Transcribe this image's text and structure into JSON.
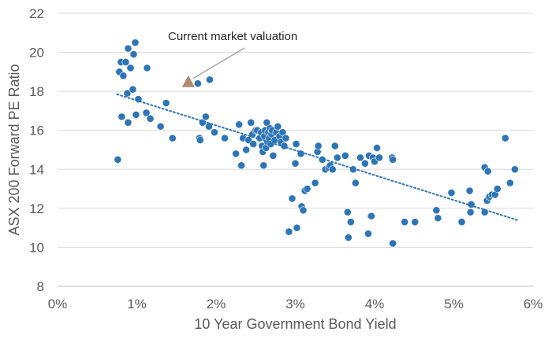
{
  "chart_data": {
    "type": "scatter",
    "title": "",
    "xlabel": "10 Year Government Bond Yield",
    "ylabel": "ASX 200 Forward PE Ratio",
    "xlim": [
      0,
      6
    ],
    "ylim": [
      8,
      22
    ],
    "x_ticks": [
      0,
      1,
      2,
      3,
      4,
      5,
      6
    ],
    "x_tick_labels": [
      "0%",
      "1%",
      "2%",
      "3%",
      "4%",
      "5%",
      "6%"
    ],
    "y_ticks": [
      8,
      10,
      12,
      14,
      16,
      18,
      20,
      22
    ],
    "y_tick_labels": [
      "8",
      "10",
      "12",
      "14",
      "16",
      "18",
      "20",
      "22"
    ],
    "grid": "horizontal",
    "legend": "none",
    "point_color": "#2E75B6",
    "trend_color": "#2E75B6",
    "marker_color": "#B08B6E",
    "points": [
      [
        0.76,
        14.5
      ],
      [
        0.78,
        19.0
      ],
      [
        0.8,
        19.5
      ],
      [
        0.81,
        16.7
      ],
      [
        0.83,
        18.8
      ],
      [
        0.86,
        19.5
      ],
      [
        0.88,
        17.9
      ],
      [
        0.89,
        16.4
      ],
      [
        0.89,
        20.2
      ],
      [
        0.92,
        19.2
      ],
      [
        0.95,
        18.1
      ],
      [
        0.96,
        19.9
      ],
      [
        0.98,
        20.5
      ],
      [
        0.99,
        16.8
      ],
      [
        1.02,
        17.6
      ],
      [
        1.12,
        16.9
      ],
      [
        1.13,
        19.2
      ],
      [
        1.17,
        16.6
      ],
      [
        1.3,
        16.2
      ],
      [
        1.37,
        17.4
      ],
      [
        1.45,
        15.6
      ],
      [
        1.77,
        18.4
      ],
      [
        1.79,
        15.6
      ],
      [
        1.8,
        15.5
      ],
      [
        1.83,
        16.4
      ],
      [
        1.87,
        16.7
      ],
      [
        1.91,
        16.2
      ],
      [
        1.92,
        18.6
      ],
      [
        1.98,
        15.9
      ],
      [
        2.11,
        15.6
      ],
      [
        2.25,
        14.8
      ],
      [
        2.29,
        16.3
      ],
      [
        2.32,
        14.2
      ],
      [
        2.34,
        15.6
      ],
      [
        2.38,
        15.0
      ],
      [
        2.41,
        15.5
      ],
      [
        2.44,
        16.4
      ],
      [
        2.46,
        15.8
      ],
      [
        2.47,
        15.3
      ],
      [
        2.5,
        16.0
      ],
      [
        2.52,
        16.0
      ],
      [
        2.55,
        15.6
      ],
      [
        2.57,
        15.9
      ],
      [
        2.58,
        15.2
      ],
      [
        2.59,
        14.9
      ],
      [
        2.6,
        14.2
      ],
      [
        2.61,
        15.7
      ],
      [
        2.62,
        16.0
      ],
      [
        2.63,
        15.1
      ],
      [
        2.64,
        16.4
      ],
      [
        2.65,
        15.4
      ],
      [
        2.66,
        15.9
      ],
      [
        2.67,
        15.6
      ],
      [
        2.68,
        16.1
      ],
      [
        2.69,
        15.3
      ],
      [
        2.7,
        15.8
      ],
      [
        2.71,
        16.0
      ],
      [
        2.72,
        14.7
      ],
      [
        2.74,
        15.5
      ],
      [
        2.76,
        15.9
      ],
      [
        2.78,
        16.2
      ],
      [
        2.8,
        15.7
      ],
      [
        2.82,
        15.4
      ],
      [
        2.84,
        15.9
      ],
      [
        2.86,
        15.2
      ],
      [
        2.88,
        15.6
      ],
      [
        2.92,
        10.8
      ],
      [
        2.96,
        12.5
      ],
      [
        3.0,
        14.3
      ],
      [
        3.01,
        15.3
      ],
      [
        3.02,
        11.0
      ],
      [
        3.07,
        14.8
      ],
      [
        3.08,
        12.1
      ],
      [
        3.1,
        11.9
      ],
      [
        3.12,
        12.9
      ],
      [
        3.15,
        13.0
      ],
      [
        3.25,
        13.3
      ],
      [
        3.28,
        14.9
      ],
      [
        3.29,
        15.2
      ],
      [
        3.34,
        14.5
      ],
      [
        3.38,
        14.0
      ],
      [
        3.42,
        14.1
      ],
      [
        3.44,
        14.2
      ],
      [
        3.47,
        14.0
      ],
      [
        3.5,
        15.2
      ],
      [
        3.53,
        14.6
      ],
      [
        3.63,
        14.7
      ],
      [
        3.66,
        11.8
      ],
      [
        3.67,
        10.5
      ],
      [
        3.7,
        11.3
      ],
      [
        3.73,
        14.0
      ],
      [
        3.76,
        13.3
      ],
      [
        3.82,
        14.6
      ],
      [
        3.88,
        14.3
      ],
      [
        3.92,
        10.7
      ],
      [
        3.93,
        14.7
      ],
      [
        3.95,
        11.6
      ],
      [
        3.96,
        11.6
      ],
      [
        3.98,
        14.6
      ],
      [
        4.0,
        14.4
      ],
      [
        4.03,
        15.1
      ],
      [
        4.06,
        14.6
      ],
      [
        4.22,
        14.6
      ],
      [
        4.23,
        10.2
      ],
      [
        4.23,
        14.5
      ],
      [
        4.38,
        11.3
      ],
      [
        4.51,
        11.3
      ],
      [
        4.78,
        11.9
      ],
      [
        4.8,
        11.5
      ],
      [
        4.97,
        12.8
      ],
      [
        5.1,
        11.3
      ],
      [
        5.2,
        12.9
      ],
      [
        5.21,
        11.8
      ],
      [
        5.22,
        12.2
      ],
      [
        5.39,
        11.8
      ],
      [
        5.39,
        14.1
      ],
      [
        5.42,
        12.4
      ],
      [
        5.43,
        13.9
      ],
      [
        5.45,
        12.6
      ],
      [
        5.48,
        12.7
      ],
      [
        5.52,
        12.7
      ],
      [
        5.55,
        13.0
      ],
      [
        5.65,
        15.6
      ],
      [
        5.71,
        13.3
      ],
      [
        5.77,
        14.0
      ]
    ],
    "trendline": {
      "style": "dotted",
      "x": [
        0.75,
        5.8
      ],
      "y": [
        17.85,
        11.4
      ]
    },
    "annotation": {
      "text": "Current market valuation",
      "x": 1.65,
      "y": 18.5
    }
  }
}
